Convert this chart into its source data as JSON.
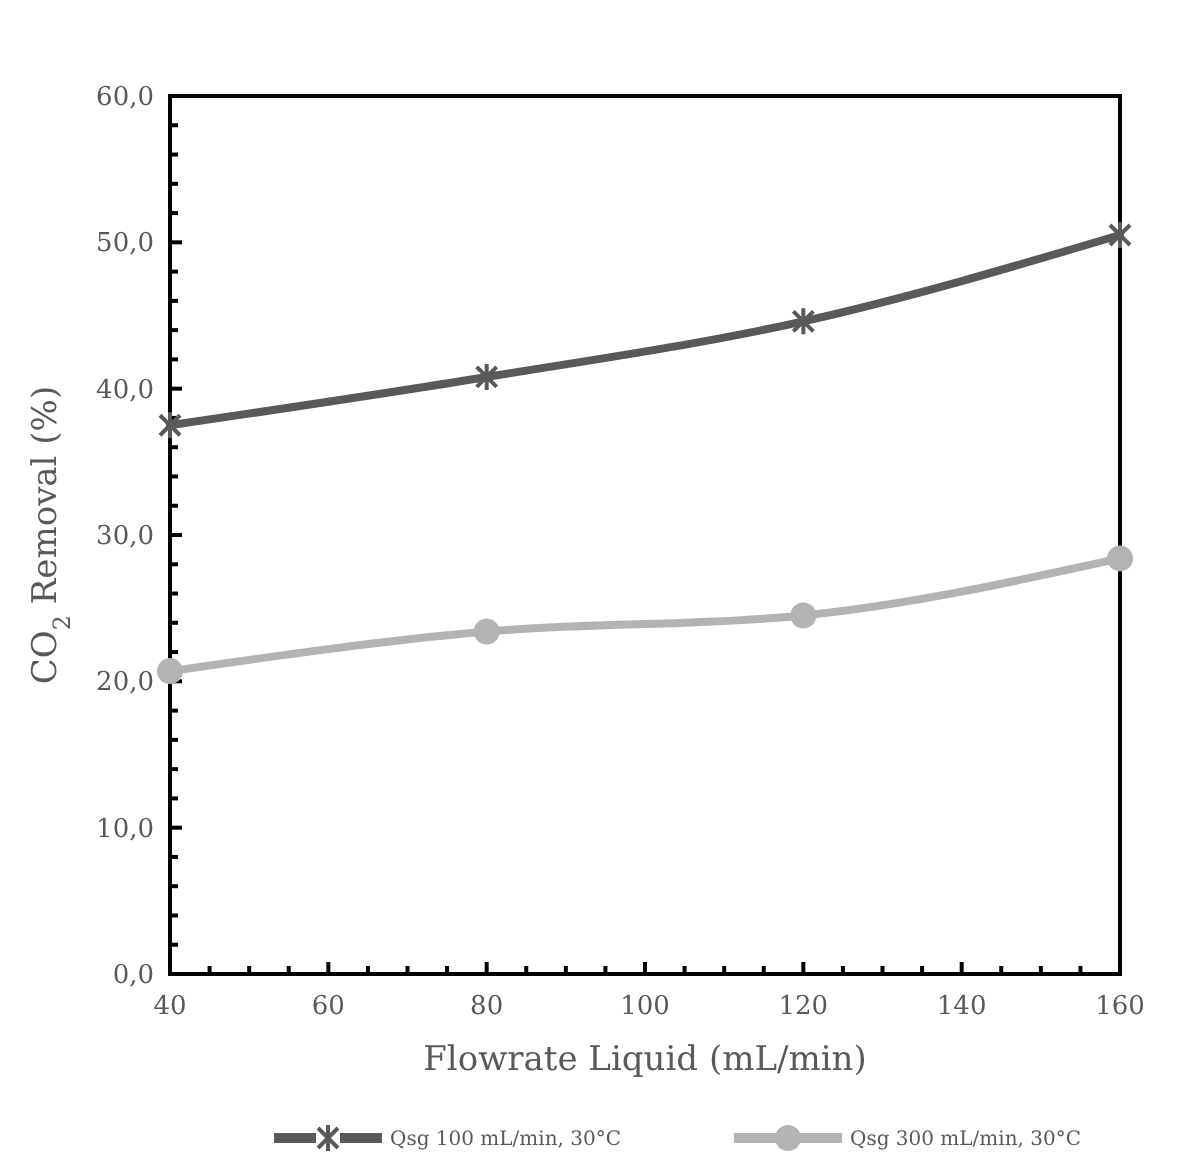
{
  "chart_data": {
    "type": "line",
    "xlabel": "Flowrate Liquid (mL/min)",
    "ylabel": "CO$_{2}$ Removal (%)",
    "x": [
      40,
      80,
      120,
      160
    ],
    "series": [
      {
        "name": "Qsg 100 mL/min, 30°C",
        "color": "#595959",
        "values": [
          37.5,
          40.8,
          44.6,
          50.5
        ],
        "marker": "cross"
      },
      {
        "name": "Qsg 300 mL/min, 30°C",
        "color": "#b3b3b3",
        "values": [
          20.7,
          23.4,
          24.5,
          28.4
        ],
        "marker": "circle"
      }
    ],
    "xlim": [
      40,
      160
    ],
    "xticks": [
      40,
      {
        "value": 45,
        "label": null
      },
      {
        "value": 50,
        "label": null
      },
      {
        "value": 55,
        "label": null
      },
      60,
      {
        "value": 65,
        "label": null
      },
      {
        "value": 70,
        "label": null
      },
      {
        "value": 75,
        "label": null
      },
      80,
      {
        "value": 85,
        "label": null
      },
      {
        "value": 90,
        "label": null
      },
      {
        "value": 95,
        "label": null
      },
      100,
      {
        "value": 105,
        "label": null
      },
      {
        "value": 110,
        "label": null
      },
      {
        "value": 115,
        "label": null
      },
      120,
      {
        "value": 125,
        "label": null
      },
      {
        "value": 130,
        "label": null
      },
      {
        "value": 135,
        "label": null
      },
      140,
      {
        "value": 145,
        "label": null
      },
      {
        "value": 150,
        "label": null
      },
      {
        "value": 155,
        "label": null
      },
      160
    ],
    "ylim": [
      0,
      60
    ],
    "yticks": [
      {
        "value": 0,
        "label": "0,0"
      },
      {
        "value": 2,
        "label": null
      },
      {
        "value": 4,
        "label": null
      },
      {
        "value": 6,
        "label": null
      },
      {
        "value": 8,
        "label": null
      },
      {
        "value": 10,
        "label": "10,0"
      },
      {
        "value": 12,
        "label": null
      },
      {
        "value": 14,
        "label": null
      },
      {
        "value": 16,
        "label": null
      },
      {
        "value": 18,
        "label": null
      },
      {
        "value": 20,
        "label": "20,0"
      },
      {
        "value": 22,
        "label": null
      },
      {
        "value": 24,
        "label": null
      },
      {
        "value": 26,
        "label": null
      },
      {
        "value": 28,
        "label": null
      },
      {
        "value": 30,
        "label": "30,0"
      },
      {
        "value": 32,
        "label": null
      },
      {
        "value": 34,
        "label": null
      },
      {
        "value": 36,
        "label": null
      },
      {
        "value": 38,
        "label": null
      },
      {
        "value": 40,
        "label": "40,0"
      },
      {
        "value": 42,
        "label": null
      },
      {
        "value": 44,
        "label": null
      },
      {
        "value": 46,
        "label": null
      },
      {
        "value": 48,
        "label": null
      },
      {
        "value": 50,
        "label": "50,0"
      },
      {
        "value": 52,
        "label": null
      },
      {
        "value": 54,
        "label": null
      },
      {
        "value": 56,
        "label": null
      },
      {
        "value": 58,
        "label": null
      },
      {
        "value": 60,
        "label": "60,0"
      }
    ],
    "grid": false,
    "legend": "bottom",
    "line_style": "solid"
  }
}
